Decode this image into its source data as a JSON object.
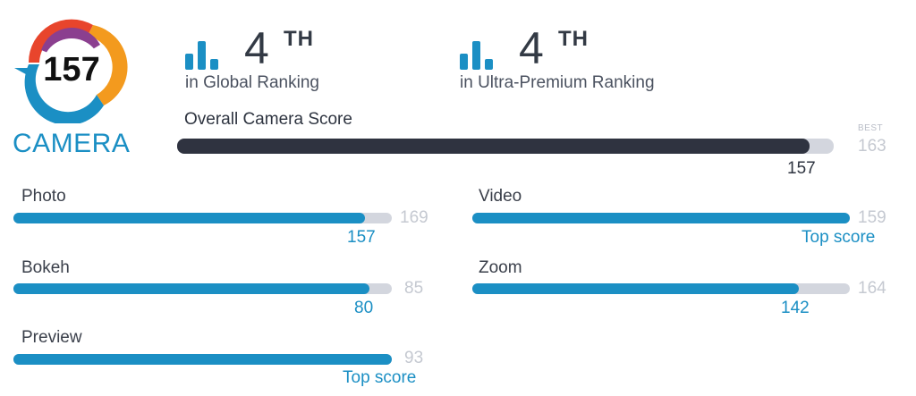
{
  "badge": {
    "score": "157",
    "label": "CAMERA",
    "ring_colors": [
      "#e8452c",
      "#f39a1e",
      "#8b3f8f",
      "#1b8fc4"
    ]
  },
  "rankings": [
    {
      "icon": "bar-chart-icon",
      "rank": "4",
      "suffix": "TH",
      "label": "in Global Ranking"
    },
    {
      "icon": "bar-chart-icon",
      "rank": "4",
      "suffix": "TH",
      "label": "in Ultra-Premium Ranking"
    }
  ],
  "overall": {
    "title": "Overall Camera Score",
    "best_caption": "BEST",
    "best_value": "163",
    "value": "157",
    "fraction": 0.963,
    "fill_color": "#2f3340"
  },
  "subscores": [
    {
      "name": "Photo",
      "value": "157",
      "max": "169",
      "fraction": 0.929
    },
    {
      "name": "Video",
      "value": "Top score",
      "max": "159",
      "fraction": 1.0
    },
    {
      "name": "Bokeh",
      "value": "80",
      "max": "85",
      "fraction": 0.941
    },
    {
      "name": "Zoom",
      "value": "142",
      "max": "164",
      "fraction": 0.866
    },
    {
      "name": "Preview",
      "value": "Top score",
      "max": "93",
      "fraction": 1.0
    }
  ],
  "colors": {
    "accent": "#1b8fc4",
    "track": "#d3d6de",
    "muted": "#c5c9d1"
  }
}
